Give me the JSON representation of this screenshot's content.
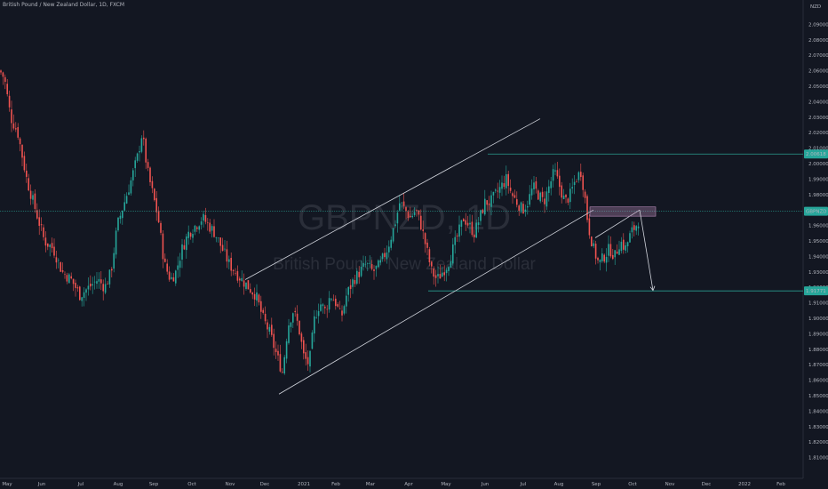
{
  "header": {
    "title": "British Pound / New Zealand Dollar, 1D, FXCM"
  },
  "watermark": {
    "symbol": "GBPNZD, 1D",
    "name": "British Pound / New Zealand Dollar"
  },
  "colors": {
    "background": "#131722",
    "up": "#26a69a",
    "down": "#ef5350",
    "level_line": "#2a9d8f",
    "channel": "#d1d4dc",
    "zone": "#b98ab8",
    "price_badge": "#26a69a"
  },
  "chart_data": {
    "type": "candlestick",
    "title": "British Pound / New Zealand Dollar, 1D, FXCM",
    "ylabel": "NZD",
    "ylim": [
      1.8,
      2.11
    ],
    "y_ticks": [
      "2.09000",
      "2.08000",
      "2.07000",
      "2.06000",
      "2.05000",
      "2.04000",
      "2.03000",
      "2.02000",
      "2.01000",
      "2.00000",
      "1.99000",
      "1.98000",
      "1.97000",
      "1.96000",
      "1.95000",
      "1.94000",
      "1.93000",
      "1.92000",
      "1.91000",
      "1.90000",
      "1.89000",
      "1.88000",
      "1.87000",
      "1.86000",
      "1.85000",
      "1.84000",
      "1.83000",
      "1.82000",
      "1.81000"
    ],
    "x_ticks": [
      "May",
      "Jun",
      "Jul",
      "Aug",
      "Sep",
      "Oct",
      "Nov",
      "Dec",
      "2021",
      "Feb",
      "Mar",
      "Apr",
      "May",
      "Jun",
      "Jul",
      "Aug",
      "Sep",
      "Oct",
      "Nov",
      "Dec",
      "2022",
      "Feb"
    ],
    "price_path": [
      [
        0,
        2.06
      ],
      [
        5,
        2.055
      ],
      [
        12,
        2.03
      ],
      [
        20,
        2.02
      ],
      [
        30,
        1.99
      ],
      [
        40,
        1.97
      ],
      [
        50,
        1.95
      ],
      [
        60,
        1.945
      ],
      [
        70,
        1.93
      ],
      [
        80,
        1.925
      ],
      [
        90,
        1.915
      ],
      [
        100,
        1.92
      ],
      [
        110,
        1.925
      ],
      [
        118,
        1.92
      ],
      [
        125,
        1.93
      ],
      [
        132,
        1.96
      ],
      [
        140,
        1.975
      ],
      [
        148,
        1.99
      ],
      [
        155,
        2.005
      ],
      [
        160,
        2.02
      ],
      [
        166,
        1.995
      ],
      [
        172,
        1.98
      ],
      [
        178,
        1.965
      ],
      [
        185,
        1.935
      ],
      [
        192,
        1.925
      ],
      [
        198,
        1.93
      ],
      [
        205,
        1.945
      ],
      [
        212,
        1.955
      ],
      [
        220,
        1.96
      ],
      [
        228,
        1.965
      ],
      [
        235,
        1.96
      ],
      [
        242,
        1.955
      ],
      [
        250,
        1.945
      ],
      [
        258,
        1.935
      ],
      [
        265,
        1.93
      ],
      [
        272,
        1.925
      ],
      [
        280,
        1.92
      ],
      [
        288,
        1.915
      ],
      [
        296,
        1.9
      ],
      [
        304,
        1.89
      ],
      [
        312,
        1.875
      ],
      [
        318,
        1.865
      ],
      [
        324,
        1.895
      ],
      [
        330,
        1.905
      ],
      [
        336,
        1.895
      ],
      [
        342,
        1.875
      ],
      [
        348,
        1.87
      ],
      [
        354,
        1.9
      ],
      [
        360,
        1.91
      ],
      [
        366,
        1.905
      ],
      [
        372,
        1.915
      ],
      [
        378,
        1.91
      ],
      [
        384,
        1.9
      ],
      [
        390,
        1.915
      ],
      [
        398,
        1.925
      ],
      [
        405,
        1.93
      ],
      [
        412,
        1.935
      ],
      [
        420,
        1.93
      ],
      [
        428,
        1.935
      ],
      [
        436,
        1.945
      ],
      [
        444,
        1.96
      ],
      [
        450,
        1.975
      ],
      [
        456,
        1.97
      ],
      [
        462,
        1.965
      ],
      [
        468,
        1.97
      ],
      [
        474,
        1.96
      ],
      [
        480,
        1.945
      ],
      [
        486,
        1.93
      ],
      [
        492,
        1.925
      ],
      [
        498,
        1.93
      ],
      [
        504,
        1.935
      ],
      [
        510,
        1.945
      ],
      [
        516,
        1.955
      ],
      [
        522,
        1.965
      ],
      [
        528,
        1.96
      ],
      [
        534,
        1.955
      ],
      [
        540,
        1.965
      ],
      [
        546,
        1.975
      ],
      [
        552,
        1.975
      ],
      [
        558,
        1.98
      ],
      [
        564,
        1.985
      ],
      [
        570,
        1.99
      ],
      [
        576,
        1.98
      ],
      [
        582,
        1.975
      ],
      [
        588,
        1.97
      ],
      [
        594,
        1.975
      ],
      [
        600,
        1.985
      ],
      [
        606,
        1.98
      ],
      [
        612,
        1.975
      ],
      [
        618,
        1.985
      ],
      [
        624,
        1.995
      ],
      [
        630,
        1.985
      ],
      [
        636,
        1.975
      ],
      [
        642,
        1.98
      ],
      [
        648,
        1.99
      ],
      [
        654,
        1.995
      ],
      [
        658,
        1.98
      ],
      [
        662,
        1.96
      ],
      [
        668,
        1.945
      ],
      [
        674,
        1.935
      ],
      [
        680,
        1.94
      ],
      [
        686,
        1.945
      ],
      [
        692,
        1.94
      ],
      [
        698,
        1.95
      ],
      [
        704,
        1.945
      ],
      [
        710,
        1.955
      ],
      [
        716,
        1.96
      ],
      [
        720,
        1.965
      ]
    ],
    "levels": [
      {
        "value": 2.00618,
        "label": "2.00618"
      },
      {
        "value": 1.9692,
        "label": "GBPNZD"
      },
      {
        "value": 1.91771,
        "label": "1.91771"
      }
    ],
    "annotations": {
      "channel_upper": [
        [
          276,
          1.925
        ],
        [
          608,
          2.029
        ]
      ],
      "channel_lower": [
        [
          314,
          1.851
        ],
        [
          668,
          1.97
        ]
      ],
      "wedge": [
        [
          670,
          1.952
        ],
        [
          720,
          1.97
        ]
      ],
      "projection_arrow": [
        [
          720,
          1.97
        ],
        [
          735,
          1.918
        ]
      ],
      "zone": {
        "x_start": 664,
        "x_end": 738,
        "y_top": 1.972,
        "y_bottom": 1.966
      },
      "level_2_start_x": 549,
      "level_3_start_x": 482
    }
  }
}
